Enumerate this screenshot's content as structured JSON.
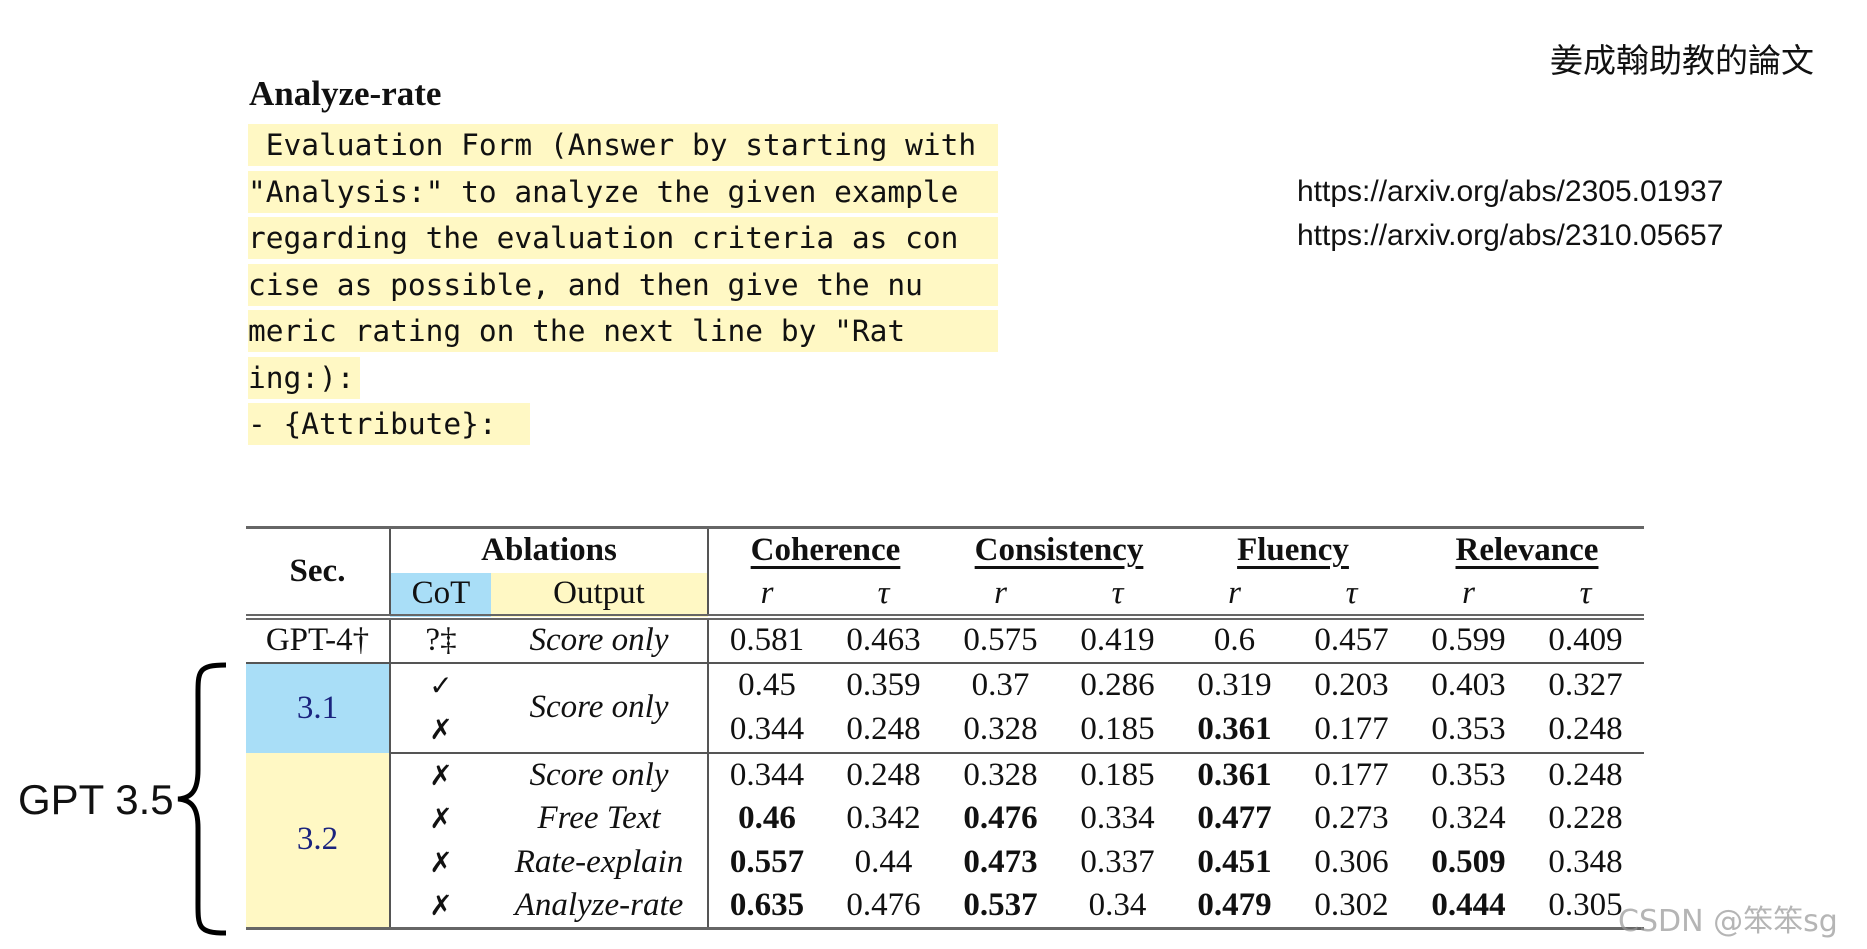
{
  "section_title": "Analyze-rate",
  "prompt_lines": [
    " Evaluation Form (Answer by starting with",
    "\"Analysis:\" to analyze the given example",
    "regarding the evaluation criteria as con",
    "cise as possible, and then give the nu",
    "meric rating on the next line by \"Rat",
    "ing:):",
    "- {Attribute}: "
  ],
  "note_cn": "姜成翰助教的論文",
  "urls": [
    "https://arxiv.org/abs/2305.01937",
    "https://arxiv.org/abs/2310.05657"
  ],
  "gpt35_label": "GPT 3.5",
  "watermark": "CSDN @笨笨sg",
  "colors": {
    "cot_blue": "#a9def7",
    "output_yellow": "#fff8c4"
  },
  "table": {
    "header": {
      "sec": "Sec.",
      "ablations": "Ablations",
      "cot": "CoT",
      "output": "Output",
      "groups": [
        "Coherence",
        "Consistency",
        "Fluency",
        "Relevance"
      ],
      "sub": [
        "r",
        "τ",
        "r",
        "τ",
        "r",
        "τ",
        "r",
        "τ"
      ]
    },
    "groups": [
      {
        "sec": "GPT-4†",
        "color": "none",
        "rows": [
          {
            "cot": "?‡",
            "output": "Score only",
            "values": [
              "0.581",
              "0.463",
              "0.575",
              "0.419",
              "0.6",
              "0.457",
              "0.599",
              "0.409"
            ],
            "bold": []
          }
        ]
      },
      {
        "sec": "3.1",
        "color": "blue",
        "merge_output": true,
        "rows": [
          {
            "cot": "✓",
            "output": "Score only",
            "values": [
              "0.45",
              "0.359",
              "0.37",
              "0.286",
              "0.319",
              "0.203",
              "0.403",
              "0.327"
            ],
            "bold": []
          },
          {
            "cot": "✗",
            "output": "Score only",
            "values": [
              "0.344",
              "0.248",
              "0.328",
              "0.185",
              "0.361",
              "0.177",
              "0.353",
              "0.248"
            ],
            "bold": [
              4
            ]
          }
        ]
      },
      {
        "sec": "3.2",
        "color": "yellow",
        "rows": [
          {
            "cot": "✗",
            "output": "Score only",
            "values": [
              "0.344",
              "0.248",
              "0.328",
              "0.185",
              "0.361",
              "0.177",
              "0.353",
              "0.248"
            ],
            "bold": [
              4
            ]
          },
          {
            "cot": "✗",
            "output": "Free Text",
            "values": [
              "0.46",
              "0.342",
              "0.476",
              "0.334",
              "0.477",
              "0.273",
              "0.324",
              "0.228"
            ],
            "bold": [
              0,
              2,
              4
            ]
          },
          {
            "cot": "✗",
            "output": "Rate-explain",
            "values": [
              "0.557",
              "0.44",
              "0.473",
              "0.337",
              "0.451",
              "0.306",
              "0.509",
              "0.348"
            ],
            "bold": [
              0,
              2,
              4,
              6
            ]
          },
          {
            "cot": "✗",
            "output": "Analyze-rate",
            "values": [
              "0.635",
              "0.476",
              "0.537",
              "0.34",
              "0.479",
              "0.302",
              "0.444",
              "0.305"
            ],
            "bold": [
              0,
              2,
              4,
              6
            ]
          }
        ]
      }
    ]
  }
}
